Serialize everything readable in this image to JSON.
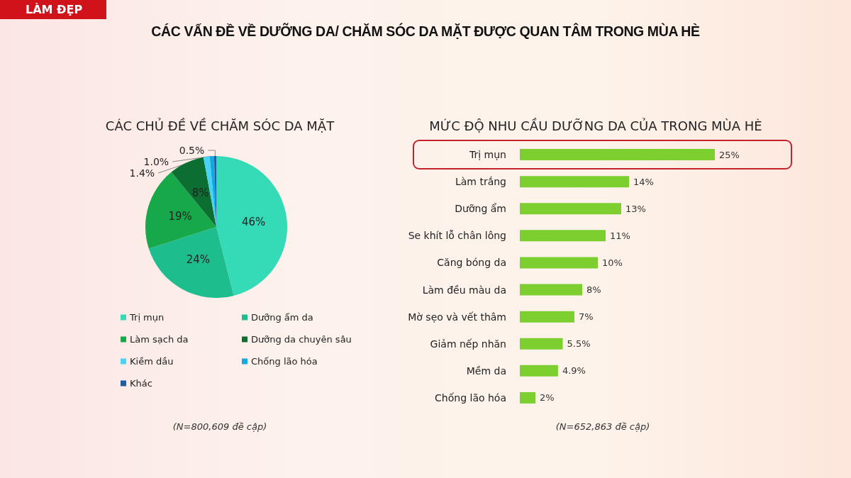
{
  "chart_data": [
    {
      "type": "other",
      "title": "CÁC VẤN ĐỀ VỀ DƯỠNG DA/ CHĂM SÓC DA MẶT ĐƯỢC QUAN TÂM TRONG MÙA HÈ",
      "annotations": [
        "LÀM ĐẸP"
      ]
    },
    {
      "type": "pie",
      "title": "CÁC CHỦ ĐỀ VỀ CHĂM SÓC DA MẶT",
      "categories": [
        "Trị mụn",
        "Dưỡng ẩm da",
        "Làm sạch da",
        "Dưỡng da chuyên sâu",
        "Kiềm dầu",
        "Chống lão hóa",
        "Khác"
      ],
      "values": [
        46,
        24,
        19,
        8,
        1.4,
        1.0,
        0.5
      ],
      "value_labels": [
        "46%",
        "24%",
        "19%",
        "8%",
        "1.4%",
        "1.0%",
        "0.5%"
      ],
      "colors": [
        "#35dbb7",
        "#1dbd8e",
        "#17a84a",
        "#0d6e32",
        "#46d3f7",
        "#12a9e3",
        "#1b5ea6"
      ],
      "legend": "bottom",
      "annotations": [
        "(N=800,609 đề cập)"
      ]
    },
    {
      "type": "bar",
      "orientation": "horizontal",
      "title": "MỨC ĐỘ NHU CẦU DƯỠNG DA CỦA TRONG MÙA HÈ",
      "categories": [
        "Trị mụn",
        "Làm trắng",
        "Dưỡng ẩm",
        "Se khít lỗ chân lông",
        "Căng bóng da",
        "Làm đều màu da",
        "Mờ sẹo và vết thâm",
        "Giảm nếp nhăn",
        "Mềm da",
        "Chống lão hóa"
      ],
      "values": [
        25,
        14,
        13,
        11,
        10,
        8,
        7,
        5.5,
        4.9,
        2
      ],
      "value_labels": [
        "25%",
        "14%",
        "13%",
        "11%",
        "10%",
        "8%",
        "7%",
        "5.5%",
        "4.9%",
        "2%"
      ],
      "color": "#7ccf2e",
      "tick_labels": "y",
      "annotations": [
        "(N=652,863 đề cập)"
      ]
    }
  ]
}
